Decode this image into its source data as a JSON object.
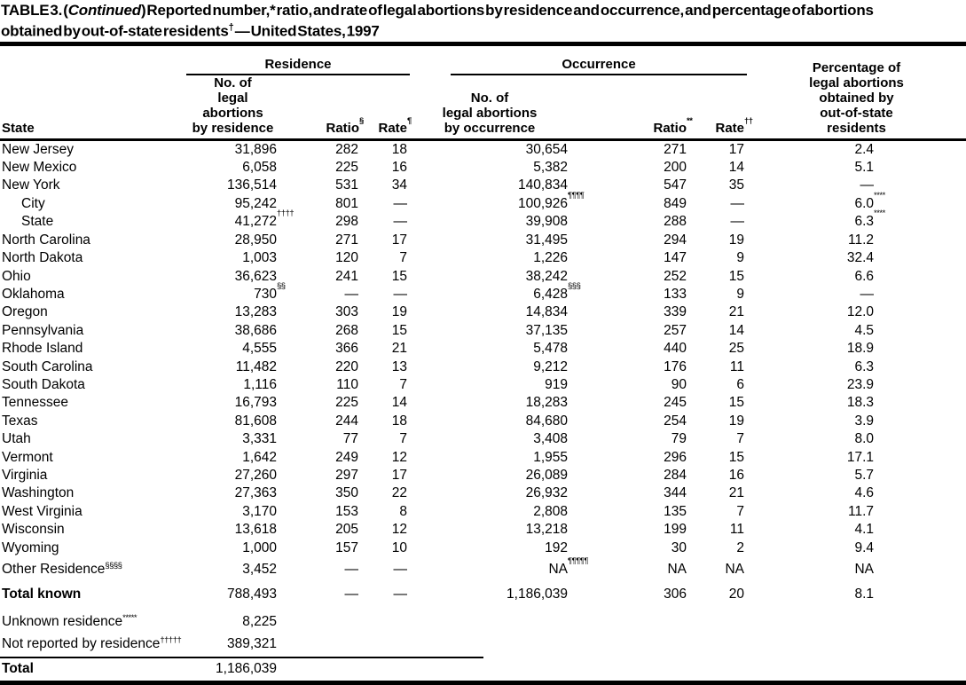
{
  "title": {
    "line1_prefix": "TABLE 3. (",
    "line1_italic": "Continued",
    "line1_rest": ") Reported number,* ratio, and rate of legal abortions by residence and occurrence, and percentage of abortions",
    "line2": "obtained by out-of-state residents",
    "line2_sup": "†",
    "line2_rest": " — United States, 1997"
  },
  "table": {
    "state_header": "State",
    "groups": {
      "residence": "Residence",
      "occurrence": "Occurrence"
    },
    "col_headers": {
      "res_no": "No. of\nlegal abortions\nby residence",
      "res_ratio": {
        "label": "Ratio",
        "sup": "§"
      },
      "res_rate": {
        "label": "Rate",
        "sup": "¶"
      },
      "occ_no": "No. of\nlegal abortions\nby occurrence",
      "occ_ratio": {
        "label": "Ratio",
        "sup": "**"
      },
      "occ_rate": {
        "label": "Rate",
        "sup": "††"
      },
      "pct": "Percentage of\nlegal abortions\nobtained by\nout-of-state\nresidents"
    },
    "rows": [
      {
        "state": "New Jersey",
        "res_no": "31,896",
        "res_ratio": "282",
        "res_rate": "18",
        "occ_no": "30,654",
        "occ_ratio": "271",
        "occ_rate": "17",
        "pct": "2.4"
      },
      {
        "state": "New Mexico",
        "res_no": "6,058",
        "res_ratio": "225",
        "res_rate": "16",
        "occ_no": "5,382",
        "occ_ratio": "200",
        "occ_rate": "14",
        "pct": "5.1"
      },
      {
        "state": "New York",
        "res_no": "136,514",
        "res_ratio": "531",
        "res_rate": "34",
        "occ_no": "140,834",
        "occ_ratio": "547",
        "occ_rate": "35",
        "pct": "—"
      },
      {
        "state": "City",
        "indent": true,
        "res_no": "95,242",
        "res_ratio": "801",
        "res_rate": "—",
        "occ_no": "100,926",
        "occ_no_sup": "¶¶¶¶",
        "occ_ratio": "849",
        "occ_rate": "—",
        "pct": "6.0",
        "pct_sup": "****"
      },
      {
        "state": "State",
        "indent": true,
        "res_no": "41,272",
        "res_no_sup": "††††",
        "res_ratio": "298",
        "res_rate": "—",
        "occ_no": "39,908",
        "occ_ratio": "288",
        "occ_rate": "—",
        "pct": "6.3",
        "pct_sup": "****"
      },
      {
        "state": "North Carolina",
        "res_no": "28,950",
        "res_ratio": "271",
        "res_rate": "17",
        "occ_no": "31,495",
        "occ_ratio": "294",
        "occ_rate": "19",
        "pct": "11.2"
      },
      {
        "state": "North Dakota",
        "res_no": "1,003",
        "res_ratio": "120",
        "res_rate": "7",
        "occ_no": "1,226",
        "occ_ratio": "147",
        "occ_rate": "9",
        "pct": "32.4"
      },
      {
        "state": "Ohio",
        "res_no": "36,623",
        "res_ratio": "241",
        "res_rate": "15",
        "occ_no": "38,242",
        "occ_ratio": "252",
        "occ_rate": "15",
        "pct": "6.6"
      },
      {
        "state": "Oklahoma",
        "res_no": "730",
        "res_no_sup": "§§",
        "res_ratio": "—",
        "res_rate": "—",
        "occ_no": "6,428",
        "occ_no_sup": "§§§",
        "occ_ratio": "133",
        "occ_rate": "9",
        "pct": "—"
      },
      {
        "state": "Oregon",
        "res_no": "13,283",
        "res_ratio": "303",
        "res_rate": "19",
        "occ_no": "14,834",
        "occ_ratio": "339",
        "occ_rate": "21",
        "pct": "12.0"
      },
      {
        "state": "Pennsylvania",
        "res_no": "38,686",
        "res_ratio": "268",
        "res_rate": "15",
        "occ_no": "37,135",
        "occ_ratio": "257",
        "occ_rate": "14",
        "pct": "4.5"
      },
      {
        "state": "Rhode Island",
        "res_no": "4,555",
        "res_ratio": "366",
        "res_rate": "21",
        "occ_no": "5,478",
        "occ_ratio": "440",
        "occ_rate": "25",
        "pct": "18.9"
      },
      {
        "state": "South Carolina",
        "res_no": "11,482",
        "res_ratio": "220",
        "res_rate": "13",
        "occ_no": "9,212",
        "occ_ratio": "176",
        "occ_rate": "11",
        "pct": "6.3"
      },
      {
        "state": "South Dakota",
        "res_no": "1,116",
        "res_ratio": "110",
        "res_rate": "7",
        "occ_no": "919",
        "occ_ratio": "90",
        "occ_rate": "6",
        "pct": "23.9"
      },
      {
        "state": "Tennessee",
        "res_no": "16,793",
        "res_ratio": "225",
        "res_rate": "14",
        "occ_no": "18,283",
        "occ_ratio": "245",
        "occ_rate": "15",
        "pct": "18.3"
      },
      {
        "state": "Texas",
        "res_no": "81,608",
        "res_ratio": "244",
        "res_rate": "18",
        "occ_no": "84,680",
        "occ_ratio": "254",
        "occ_rate": "19",
        "pct": "3.9"
      },
      {
        "state": "Utah",
        "res_no": "3,331",
        "res_ratio": "77",
        "res_rate": "7",
        "occ_no": "3,408",
        "occ_ratio": "79",
        "occ_rate": "7",
        "pct": "8.0"
      },
      {
        "state": "Vermont",
        "res_no": "1,642",
        "res_ratio": "249",
        "res_rate": "12",
        "occ_no": "1,955",
        "occ_ratio": "296",
        "occ_rate": "15",
        "pct": "17.1"
      },
      {
        "state": "Virginia",
        "res_no": "27,260",
        "res_ratio": "297",
        "res_rate": "17",
        "occ_no": "26,089",
        "occ_ratio": "284",
        "occ_rate": "16",
        "pct": "5.7"
      },
      {
        "state": "Washington",
        "res_no": "27,363",
        "res_ratio": "350",
        "res_rate": "22",
        "occ_no": "26,932",
        "occ_ratio": "344",
        "occ_rate": "21",
        "pct": "4.6"
      },
      {
        "state": "West Virginia",
        "res_no": "3,170",
        "res_ratio": "153",
        "res_rate": "8",
        "occ_no": "2,808",
        "occ_ratio": "135",
        "occ_rate": "7",
        "pct": "11.7"
      },
      {
        "state": "Wisconsin",
        "res_no": "13,618",
        "res_ratio": "205",
        "res_rate": "12",
        "occ_no": "13,218",
        "occ_ratio": "199",
        "occ_rate": "11",
        "pct": "4.1"
      },
      {
        "state": "Wyoming",
        "res_no": "1,000",
        "res_ratio": "157",
        "res_rate": "10",
        "occ_no": "192",
        "occ_ratio": "30",
        "occ_rate": "2",
        "pct": "9.4"
      },
      {
        "state": "Other Residence",
        "state_sup": "§§§§",
        "res_no": "3,452",
        "res_ratio": "—",
        "res_rate": "—",
        "occ_no": "NA",
        "occ_no_sup": "¶¶¶¶¶",
        "occ_ratio": "NA",
        "occ_rate": "NA",
        "pct": "NA"
      },
      {
        "state": "Total known",
        "bold": true,
        "gap": true,
        "res_no": "788,493",
        "res_ratio": "—",
        "res_rate": "—",
        "occ_no": "1,186,039",
        "occ_ratio": "306",
        "occ_rate": "20",
        "pct": "8.1"
      },
      {
        "state": "Unknown residence",
        "state_sup": "*****",
        "gap": true,
        "res_no": "8,225"
      },
      {
        "state": "Not reported by residence",
        "state_sup": "†††††",
        "res_no": "389,321"
      },
      {
        "state": "Total",
        "bold": true,
        "rule_before": true,
        "res_no": "1,186,039"
      }
    ]
  }
}
